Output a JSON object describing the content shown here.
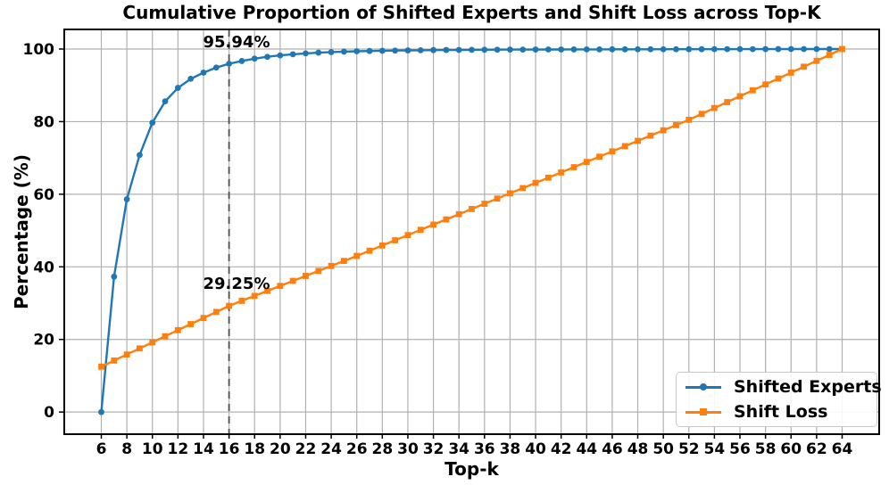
{
  "chart_data": {
    "type": "line",
    "title": "Cumulative Proportion of Shifted Experts and Shift Loss across Top-K",
    "xlabel": "Top-k",
    "ylabel": "Percentage (%)",
    "x": [
      6,
      7,
      8,
      9,
      10,
      11,
      12,
      13,
      14,
      15,
      16,
      17,
      18,
      19,
      20,
      21,
      22,
      23,
      24,
      25,
      26,
      27,
      28,
      29,
      30,
      31,
      32,
      33,
      34,
      35,
      36,
      37,
      38,
      39,
      40,
      41,
      42,
      43,
      44,
      45,
      46,
      47,
      48,
      49,
      50,
      51,
      52,
      53,
      54,
      55,
      56,
      57,
      58,
      59,
      60,
      61,
      62,
      63,
      64
    ],
    "series": [
      {
        "name": "Shifted Experts",
        "color": "#1f77b4",
        "marker": "circle",
        "values": [
          0,
          37.3,
          58.6,
          70.8,
          79.7,
          85.6,
          89.3,
          91.8,
          93.5,
          94.9,
          95.94,
          96.7,
          97.35,
          97.85,
          98.25,
          98.55,
          98.8,
          99.0,
          99.15,
          99.28,
          99.38,
          99.46,
          99.52,
          99.57,
          99.62,
          99.66,
          99.7,
          99.73,
          99.76,
          99.78,
          99.8,
          99.82,
          99.84,
          99.85,
          99.86,
          99.87,
          99.88,
          99.89,
          99.9,
          99.91,
          99.92,
          99.92,
          99.93,
          99.93,
          99.94,
          99.94,
          99.95,
          99.95,
          99.96,
          99.96,
          99.97,
          99.97,
          99.98,
          99.98,
          99.99,
          99.99,
          99.99,
          100,
          100
        ]
      },
      {
        "name": "Shift Loss",
        "color": "#ff7f0e",
        "marker": "square",
        "values": [
          12.5,
          14.18,
          15.85,
          17.53,
          19.2,
          20.88,
          22.55,
          24.23,
          25.9,
          27.58,
          29.25,
          30.63,
          32.0,
          33.38,
          34.75,
          36.13,
          37.5,
          38.88,
          40.25,
          41.63,
          43.0,
          44.44,
          45.88,
          47.31,
          48.75,
          50.19,
          51.63,
          53.06,
          54.5,
          55.94,
          57.38,
          58.81,
          60.25,
          61.69,
          63.13,
          64.56,
          66.0,
          67.45,
          68.9,
          70.35,
          71.8,
          73.25,
          74.7,
          76.15,
          77.6,
          79.05,
          80.5,
          82.13,
          83.75,
          85.38,
          87.0,
          88.63,
          90.25,
          91.88,
          93.5,
          95.13,
          96.75,
          98.38,
          100
        ]
      }
    ],
    "xticks": [
      6,
      8,
      10,
      12,
      14,
      16,
      18,
      20,
      22,
      24,
      26,
      28,
      30,
      32,
      34,
      36,
      38,
      40,
      42,
      44,
      46,
      48,
      50,
      52,
      54,
      56,
      58,
      60,
      62,
      64
    ],
    "yticks": [
      0,
      20,
      40,
      60,
      80,
      100
    ],
    "xlim": [
      3.1,
      66.9
    ],
    "ylim": [
      -6.1,
      105.4
    ],
    "grid": true,
    "legend_position": "lower right",
    "vline": {
      "x": 16,
      "style": "dashed",
      "color": "#4d4d4d"
    },
    "annotations": [
      {
        "text": "95.94%",
        "x": 16,
        "y": 100.7
      },
      {
        "text": "29.25%",
        "x": 16,
        "y": 33.5
      }
    ]
  },
  "colors": {
    "grid": "#b0b0b0",
    "spine": "#000000",
    "background": "#ffffff",
    "annotation": "#000000"
  }
}
